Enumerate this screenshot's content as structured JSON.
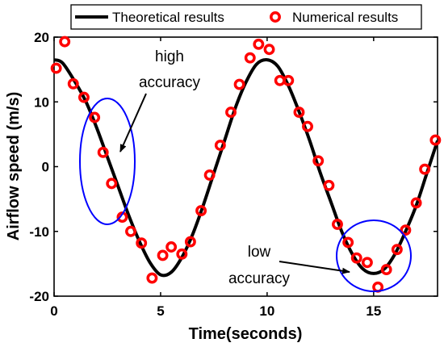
{
  "chart_data": {
    "type": "line",
    "xlabel": "Time(seconds)",
    "ylabel": "Airflow speed (m/s)",
    "xlim": [
      0,
      18
    ],
    "ylim": [
      -20,
      20
    ],
    "x_ticks": [
      "0",
      "5",
      "10",
      "15"
    ],
    "y_ticks": [
      "-20",
      "-10",
      "0",
      "10",
      "20"
    ],
    "grid": false,
    "legend_position": "top",
    "colors": {
      "theoretical": "#000000",
      "numerical": "#ff0000",
      "ellipse": "#0000ff"
    },
    "series": [
      {
        "name": "Theoretical results",
        "style": "line",
        "x": [
          0,
          0.4,
          1,
          1.5,
          2,
          2.5,
          3,
          3.5,
          4,
          4.5,
          5,
          5.5,
          6,
          6.5,
          7,
          7.5,
          8,
          8.5,
          9,
          9.5,
          10,
          10.5,
          11,
          11.5,
          12,
          12.5,
          13,
          13.5,
          14,
          14.5,
          15,
          15.5,
          16,
          16.5,
          17,
          17.5,
          18
        ],
        "y": [
          16.5,
          16.0,
          13.0,
          10.0,
          6.0,
          1.5,
          -3.0,
          -7.5,
          -11.5,
          -14.8,
          -16.7,
          -16.3,
          -14.0,
          -10.5,
          -6.0,
          -1.0,
          4.0,
          9.0,
          13.0,
          15.8,
          16.5,
          15.5,
          12.5,
          8.5,
          4.0,
          -1.0,
          -5.5,
          -10.0,
          -13.5,
          -15.8,
          -16.5,
          -15.8,
          -13.5,
          -10.0,
          -6.0,
          -1.0,
          4.0
        ]
      },
      {
        "name": "Numerical results",
        "style": "markers",
        "x": [
          0.1,
          0.5,
          0.9,
          1.4,
          1.9,
          2.3,
          2.7,
          3.2,
          3.6,
          4.1,
          4.6,
          5.1,
          5.5,
          6.0,
          6.4,
          6.9,
          7.3,
          7.8,
          8.3,
          8.7,
          9.2,
          9.6,
          10.1,
          10.6,
          11.0,
          11.5,
          11.9,
          12.4,
          12.9,
          13.3,
          13.8,
          14.2,
          14.7,
          15.2,
          15.6,
          16.1,
          16.5,
          17.0,
          17.4,
          17.9
        ],
        "y": [
          15.2,
          19.3,
          12.8,
          10.7,
          7.6,
          2.2,
          -2.6,
          -7.8,
          -10.0,
          -11.8,
          -17.2,
          -13.7,
          -12.4,
          -13.5,
          -11.6,
          -6.8,
          -1.3,
          3.3,
          8.4,
          12.7,
          16.8,
          18.9,
          18.1,
          13.3,
          13.3,
          8.4,
          6.2,
          0.9,
          -2.9,
          -8.9,
          -11.7,
          -14.1,
          -14.8,
          -18.6,
          -15.9,
          -12.8,
          -9.8,
          -5.6,
          -0.4,
          4.1
        ]
      }
    ],
    "annotations": [
      {
        "lines": [
          "high",
          "accuracy"
        ]
      },
      {
        "lines": [
          "low",
          "accuracy"
        ]
      }
    ]
  }
}
